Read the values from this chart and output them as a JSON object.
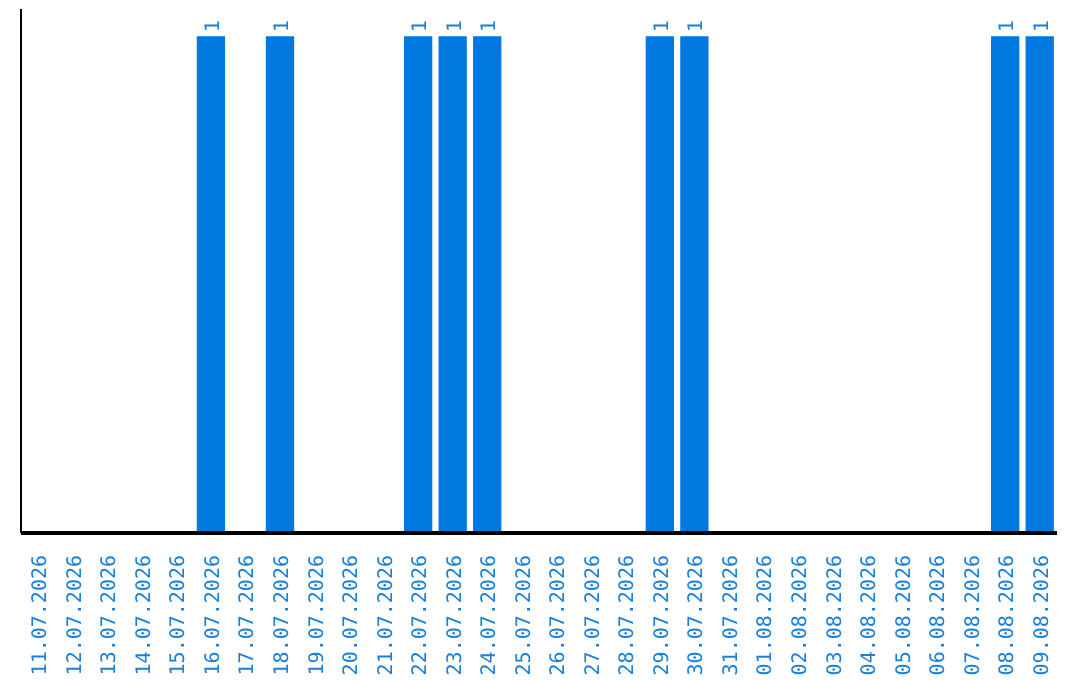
{
  "chart_data": {
    "type": "bar",
    "categories": [
      "11.07.2026",
      "12.07.2026",
      "13.07.2026",
      "14.07.2026",
      "15.07.2026",
      "16.07.2026",
      "17.07.2026",
      "18.07.2026",
      "19.07.2026",
      "20.07.2026",
      "21.07.2026",
      "22.07.2026",
      "23.07.2026",
      "24.07.2026",
      "25.07.2026",
      "26.07.2026",
      "27.07.2026",
      "28.07.2026",
      "29.07.2026",
      "30.07.2026",
      "31.07.2026",
      "01.08.2026",
      "02.08.2026",
      "03.08.2026",
      "04.08.2026",
      "05.08.2026",
      "06.08.2026",
      "07.08.2026",
      "08.08.2026",
      "09.08.2026"
    ],
    "values": [
      null,
      null,
      null,
      null,
      null,
      1,
      null,
      1,
      null,
      null,
      null,
      1,
      1,
      1,
      null,
      null,
      null,
      null,
      1,
      1,
      null,
      null,
      null,
      null,
      null,
      null,
      null,
      null,
      1,
      1
    ],
    "value_labels": [
      null,
      null,
      null,
      null,
      null,
      "1",
      null,
      "1",
      null,
      null,
      null,
      "1",
      "1",
      "1",
      null,
      null,
      null,
      null,
      "1",
      "1",
      null,
      null,
      null,
      null,
      null,
      null,
      null,
      null,
      "1",
      "1"
    ],
    "color": "#0079e0",
    "tick_labels": "x"
  }
}
